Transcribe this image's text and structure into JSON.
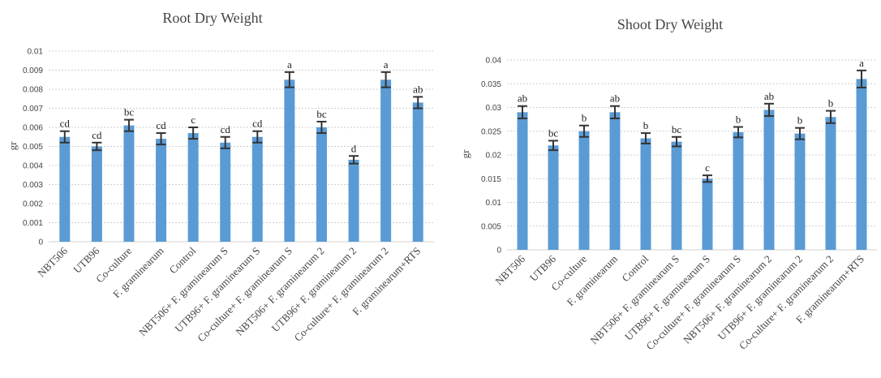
{
  "chart_data": [
    {
      "type": "bar",
      "title": "Root Dry Weight",
      "xlabel": "",
      "ylabel": "gr",
      "ylim": [
        0,
        0.01
      ],
      "yticks": [
        "0",
        "0.001",
        "0.002",
        "0.003",
        "0.004",
        "0.005",
        "0.006",
        "0.007",
        "0.008",
        "0.009",
        "0.01"
      ],
      "grid": true,
      "legend": "none",
      "bar_color": "#5b9bd5",
      "categories": [
        "NBT506",
        "UTB96",
        "Co-culture",
        "F. graminearum",
        "Control",
        "NBT506+ F. graminearum S",
        "UTB96+ F. graminearum S",
        "Co-culture+ F. graminearum S",
        "NBT506+ F. graminearum 2",
        "UTB96+ F. graminearum 2",
        "Co-culture+ F. graminearum 2",
        "F. graminearum+RTS"
      ],
      "values": [
        0.0055,
        0.005,
        0.0061,
        0.0054,
        0.0057,
        0.0052,
        0.0055,
        0.0085,
        0.006,
        0.0043,
        0.0085,
        0.0073
      ],
      "errors": [
        0.0003,
        0.0002,
        0.0003,
        0.0003,
        0.0003,
        0.0003,
        0.0003,
        0.0004,
        0.0003,
        0.0002,
        0.0004,
        0.0003
      ],
      "annotations": [
        "cd",
        "cd",
        "bc",
        "cd",
        "c",
        "cd",
        "cd",
        "a",
        "bc",
        "d",
        "a",
        "ab"
      ]
    },
    {
      "type": "bar",
      "title": "Shoot Dry Weight",
      "xlabel": "",
      "ylabel": "gr",
      "ylim": [
        0,
        0.04
      ],
      "yticks": [
        "0",
        "0.005",
        "0.01",
        "0.015",
        "0.02",
        "0.025",
        "0.03",
        "0.035",
        "0.04"
      ],
      "grid": true,
      "legend": "none",
      "bar_color": "#5b9bd5",
      "categories": [
        "NBT506",
        "UTB96",
        "Co-culture",
        "F. graminearum",
        "Control",
        "NBT506+ F. graminearum S",
        "UTB96+ F. graminearum S",
        "Co-culture+ F. graminearum S",
        "NBT506+ F. graminearum 2",
        "UTB96+ F. graminearum 2",
        "Co-culture+ F. graminearum 2",
        "F. graminearum+RTS"
      ],
      "values": [
        0.029,
        0.022,
        0.025,
        0.029,
        0.0235,
        0.0228,
        0.015,
        0.0248,
        0.0295,
        0.0245,
        0.028,
        0.036
      ],
      "errors": [
        0.0013,
        0.001,
        0.0012,
        0.0013,
        0.0011,
        0.001,
        0.0007,
        0.0011,
        0.0013,
        0.0012,
        0.0013,
        0.0018
      ],
      "annotations": [
        "ab",
        "bc",
        "b",
        "ab",
        "b",
        "bc",
        "c",
        "b",
        "ab",
        "b",
        "b",
        "a"
      ]
    }
  ]
}
